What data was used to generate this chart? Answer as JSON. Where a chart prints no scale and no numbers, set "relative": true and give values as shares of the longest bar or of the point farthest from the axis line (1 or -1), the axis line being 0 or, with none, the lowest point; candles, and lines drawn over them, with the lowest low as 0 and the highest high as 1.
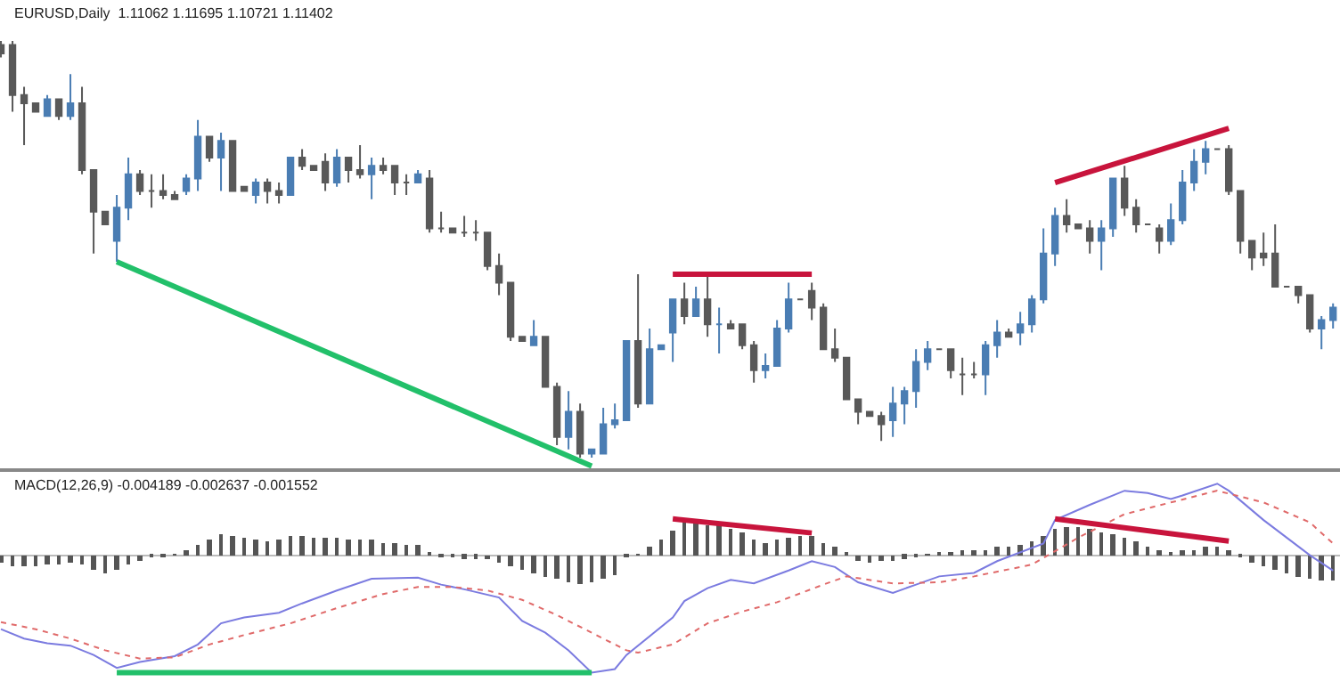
{
  "chart_data": [
    {
      "type": "candlestick",
      "relative": true,
      "annotations": [
        "EURUSD,Daily  1.11062 1.11695 1.10721 1.11402"
      ],
      "categories": [
        null,
        null,
        null,
        null,
        null,
        null,
        null,
        null,
        null,
        null,
        null,
        null,
        null,
        null,
        null,
        null,
        null,
        null,
        null,
        null,
        null,
        null,
        null,
        null,
        null,
        null,
        null,
        null,
        null,
        null,
        null,
        null,
        null,
        null,
        null,
        null,
        null,
        null,
        null,
        null,
        null,
        null,
        null,
        null,
        null,
        null,
        null,
        null,
        null,
        null,
        null,
        null,
        null,
        null,
        null,
        null,
        null,
        null,
        null,
        null,
        null,
        null,
        null,
        null,
        null,
        null,
        null,
        null,
        null,
        null,
        null,
        null,
        null,
        null,
        null,
        null,
        null,
        null,
        null,
        null,
        null,
        null,
        null,
        null,
        null,
        null,
        null,
        null,
        null,
        null,
        null,
        null,
        null,
        null,
        null,
        null,
        null,
        null,
        null,
        null,
        null,
        null,
        null,
        null,
        null,
        null,
        null,
        null,
        null,
        null,
        null,
        null,
        null,
        null,
        null,
        null
      ],
      "ohlc": [
        [
          0.99,
          1.0,
          0.96,
          0.97
        ],
        [
          0.99,
          1.0,
          0.83,
          0.87
        ],
        [
          0.87,
          0.89,
          0.75,
          0.85
        ],
        [
          0.85,
          0.85,
          0.83,
          0.83
        ],
        [
          0.82,
          0.87,
          0.82,
          0.86
        ],
        [
          0.86,
          0.86,
          0.81,
          0.82
        ],
        [
          0.82,
          0.92,
          0.81,
          0.85
        ],
        [
          0.85,
          0.89,
          0.68,
          0.69
        ],
        [
          0.69,
          0.69,
          0.49,
          0.59
        ],
        [
          0.59,
          0.59,
          0.56,
          0.56
        ],
        [
          0.52,
          0.63,
          0.47,
          0.6
        ],
        [
          0.6,
          0.72,
          0.57,
          0.68
        ],
        [
          0.68,
          0.69,
          0.63,
          0.64
        ],
        [
          0.64,
          0.68,
          0.6,
          0.64
        ],
        [
          0.64,
          0.68,
          0.62,
          0.63
        ],
        [
          0.63,
          0.64,
          0.62,
          0.62
        ],
        [
          0.64,
          0.68,
          0.63,
          0.67
        ],
        [
          0.67,
          0.81,
          0.64,
          0.77
        ],
        [
          0.77,
          0.77,
          0.71,
          0.72
        ],
        [
          0.72,
          0.78,
          0.64,
          0.76
        ],
        [
          0.76,
          0.76,
          0.64,
          0.64
        ],
        [
          0.65,
          0.65,
          0.64,
          0.64
        ],
        [
          0.63,
          0.67,
          0.61,
          0.66
        ],
        [
          0.66,
          0.67,
          0.61,
          0.64
        ],
        [
          0.64,
          0.66,
          0.61,
          0.63
        ],
        [
          0.63,
          0.72,
          0.63,
          0.72
        ],
        [
          0.72,
          0.74,
          0.69,
          0.7
        ],
        [
          0.7,
          0.7,
          0.69,
          0.69
        ],
        [
          0.71,
          0.73,
          0.64,
          0.66
        ],
        [
          0.66,
          0.74,
          0.65,
          0.72
        ],
        [
          0.72,
          0.72,
          0.66,
          0.69
        ],
        [
          0.69,
          0.75,
          0.67,
          0.68
        ],
        [
          0.68,
          0.72,
          0.62,
          0.7
        ],
        [
          0.7,
          0.72,
          0.68,
          0.69
        ],
        [
          0.7,
          0.7,
          0.63,
          0.66
        ],
        [
          0.66,
          0.68,
          0.63,
          0.66
        ],
        [
          0.66,
          0.69,
          0.66,
          0.68
        ],
        [
          0.67,
          0.69,
          0.54,
          0.55
        ],
        [
          0.55,
          0.59,
          0.54,
          0.55
        ],
        [
          0.55,
          0.55,
          0.54,
          0.54
        ],
        [
          0.54,
          0.58,
          0.53,
          0.54
        ],
        [
          0.54,
          0.57,
          0.52,
          0.54
        ],
        [
          0.54,
          0.54,
          0.45,
          0.46
        ],
        [
          0.46,
          0.49,
          0.39,
          0.42
        ],
        [
          0.42,
          0.42,
          0.28,
          0.29
        ],
        [
          0.29,
          0.29,
          0.28,
          0.28
        ],
        [
          0.27,
          0.33,
          0.27,
          0.29
        ],
        [
          0.29,
          0.29,
          0.17,
          0.17
        ],
        [
          0.17,
          0.18,
          0.03,
          0.05
        ],
        [
          0.05,
          0.16,
          0.02,
          0.11
        ],
        [
          0.11,
          0.13,
          0.0,
          0.01
        ],
        [
          0.01,
          0.02,
          0.0,
          0.02
        ],
        [
          0.01,
          0.12,
          0.01,
          0.08
        ],
        [
          0.08,
          0.13,
          0.07,
          0.09
        ],
        [
          0.09,
          0.28,
          0.09,
          0.28
        ],
        [
          0.28,
          0.44,
          0.12,
          0.13
        ],
        [
          0.13,
          0.31,
          0.13,
          0.26
        ],
        [
          0.26,
          0.27,
          0.26,
          0.27
        ],
        [
          0.3,
          0.38,
          0.23,
          0.38
        ],
        [
          0.38,
          0.42,
          0.32,
          0.34
        ],
        [
          0.34,
          0.41,
          0.34,
          0.38
        ],
        [
          0.38,
          0.44,
          0.29,
          0.32
        ],
        [
          0.32,
          0.36,
          0.25,
          0.32
        ],
        [
          0.32,
          0.33,
          0.31,
          0.31
        ],
        [
          0.32,
          0.32,
          0.26,
          0.27
        ],
        [
          0.27,
          0.28,
          0.18,
          0.21
        ],
        [
          0.21,
          0.25,
          0.19,
          0.22
        ],
        [
          0.22,
          0.33,
          0.22,
          0.31
        ],
        [
          0.31,
          0.42,
          0.3,
          0.38
        ],
        [
          0.38,
          0.38,
          0.38,
          0.38
        ],
        [
          0.4,
          0.42,
          0.33,
          0.36
        ],
        [
          0.36,
          0.37,
          0.26,
          0.26
        ],
        [
          0.26,
          0.31,
          0.23,
          0.24
        ],
        [
          0.24,
          0.24,
          0.14,
          0.14
        ],
        [
          0.14,
          0.14,
          0.08,
          0.11
        ],
        [
          0.11,
          0.11,
          0.1,
          0.1
        ],
        [
          0.1,
          0.11,
          0.04,
          0.08
        ],
        [
          0.09,
          0.17,
          0.05,
          0.13
        ],
        [
          0.13,
          0.17,
          0.08,
          0.16
        ],
        [
          0.16,
          0.26,
          0.12,
          0.23
        ],
        [
          0.23,
          0.28,
          0.21,
          0.26
        ],
        [
          0.26,
          0.26,
          0.26,
          0.26
        ],
        [
          0.26,
          0.26,
          0.19,
          0.21
        ],
        [
          0.2,
          0.24,
          0.15,
          0.2
        ],
        [
          0.2,
          0.23,
          0.19,
          0.2
        ],
        [
          0.2,
          0.28,
          0.15,
          0.27
        ],
        [
          0.27,
          0.33,
          0.24,
          0.3
        ],
        [
          0.3,
          0.31,
          0.29,
          0.29
        ],
        [
          0.3,
          0.35,
          0.27,
          0.32
        ],
        [
          0.32,
          0.39,
          0.3,
          0.38
        ],
        [
          0.38,
          0.55,
          0.37,
          0.49
        ],
        [
          0.49,
          0.6,
          0.46,
          0.58
        ],
        [
          0.58,
          0.62,
          0.54,
          0.56
        ],
        [
          0.56,
          0.56,
          0.55,
          0.55
        ],
        [
          0.55,
          0.57,
          0.49,
          0.52
        ],
        [
          0.52,
          0.57,
          0.45,
          0.55
        ],
        [
          0.55,
          0.67,
          0.53,
          0.67
        ],
        [
          0.67,
          0.7,
          0.58,
          0.6
        ],
        [
          0.6,
          0.62,
          0.54,
          0.56
        ],
        [
          0.56,
          0.56,
          0.56,
          0.56
        ],
        [
          0.55,
          0.56,
          0.49,
          0.52
        ],
        [
          0.52,
          0.61,
          0.51,
          0.57
        ],
        [
          0.57,
          0.69,
          0.56,
          0.66
        ],
        [
          0.66,
          0.74,
          0.64,
          0.71
        ],
        [
          0.71,
          0.76,
          0.68,
          0.74
        ],
        [
          0.74,
          0.74,
          0.74,
          0.74
        ],
        [
          0.74,
          0.75,
          0.63,
          0.64
        ],
        [
          0.64,
          0.64,
          0.49,
          0.52
        ],
        [
          0.52,
          0.52,
          0.45,
          0.48
        ],
        [
          0.49,
          0.54,
          0.46,
          0.48
        ],
        [
          0.49,
          0.56,
          0.41,
          0.41
        ],
        [
          0.41,
          0.41,
          0.41,
          0.41
        ],
        [
          0.41,
          0.41,
          0.37,
          0.39
        ],
        [
          0.39,
          0.39,
          0.3,
          0.31
        ],
        [
          0.31,
          0.34,
          0.26,
          0.33
        ],
        [
          0.33,
          0.37,
          0.31,
          0.36
        ]
      ],
      "colors": [
        "#595959",
        "#595959",
        "#595959",
        "#595959",
        "#4a7db3",
        "#595959",
        "#4a7db3",
        "#595959",
        "#595959",
        "#595959",
        "#4a7db3",
        "#4a7db3",
        "#595959",
        "#595959",
        "#595959",
        "#595959",
        "#4a7db3",
        "#4a7db3",
        "#595959",
        "#4a7db3",
        "#595959",
        "#595959",
        "#4a7db3",
        "#595959",
        "#595959",
        "#4a7db3",
        "#595959",
        "#595959",
        "#595959",
        "#4a7db3",
        "#595959",
        "#595959",
        "#4a7db3",
        "#595959",
        "#595959",
        "#595959",
        "#4a7db3",
        "#595959",
        "#595959",
        "#595959",
        "#595959",
        "#595959",
        "#595959",
        "#595959",
        "#595959",
        "#595959",
        "#4a7db3",
        "#595959",
        "#595959",
        "#4a7db3",
        "#595959",
        "#4a7db3",
        "#4a7db3",
        "#4a7db3",
        "#4a7db3",
        "#595959",
        "#4a7db3",
        "#4a7db3",
        "#4a7db3",
        "#595959",
        "#4a7db3",
        "#595959",
        "#4a7db3",
        "#595959",
        "#595959",
        "#595959",
        "#4a7db3",
        "#4a7db3",
        "#4a7db3",
        "#595959",
        "#595959",
        "#595959",
        "#595959",
        "#595959",
        "#595959",
        "#595959",
        "#595959",
        "#4a7db3",
        "#4a7db3",
        "#4a7db3",
        "#4a7db3",
        "#595959",
        "#595959",
        "#595959",
        "#595959",
        "#4a7db3",
        "#4a7db3",
        "#595959",
        "#4a7db3",
        "#4a7db3",
        "#4a7db3",
        "#4a7db3",
        "#595959",
        "#595959",
        "#595959",
        "#4a7db3",
        "#4a7db3",
        "#595959",
        "#595959",
        "#595959",
        "#595959",
        "#4a7db3",
        "#4a7db3",
        "#4a7db3",
        "#4a7db3",
        "#595959",
        "#595959",
        "#595959",
        "#595959",
        "#595959",
        "#595959",
        "#595959",
        "#595959",
        "#595959",
        "#4a7db3",
        "#4a7db3"
      ],
      "series": [
        {
          "type": "line",
          "color": "#22c06a",
          "values": [
            null,
            null,
            null,
            null,
            null,
            null,
            null,
            null,
            null,
            null,
            0.47,
            null,
            null,
            null,
            null,
            null,
            null,
            null,
            null,
            null,
            null,
            null,
            null,
            null,
            null,
            null,
            null,
            null,
            null,
            null,
            null,
            null,
            null,
            null,
            null,
            null,
            null,
            null,
            null,
            null,
            null,
            null,
            null,
            null,
            null,
            null,
            null,
            null,
            null,
            null,
            null,
            -0.02,
            null,
            null,
            null,
            null,
            null,
            null,
            null,
            null,
            null,
            null,
            null,
            null,
            null,
            null,
            null,
            null,
            null,
            null,
            null,
            null,
            null,
            null,
            null,
            null,
            null,
            null,
            null,
            null,
            null,
            null,
            null,
            null,
            null,
            null,
            null,
            null,
            null,
            null,
            null,
            null,
            null,
            null,
            null,
            null,
            null,
            null,
            null,
            null,
            null,
            null,
            null,
            null,
            null,
            null,
            null,
            null,
            null,
            null,
            null,
            null,
            null,
            null,
            null,
            null
          ]
        },
        {
          "type": "line",
          "color": "#c8143c",
          "values": [
            null,
            null,
            null,
            null,
            null,
            null,
            null,
            null,
            null,
            null,
            null,
            null,
            null,
            null,
            null,
            null,
            null,
            null,
            null,
            null,
            null,
            null,
            null,
            null,
            null,
            null,
            null,
            null,
            null,
            null,
            null,
            null,
            null,
            null,
            null,
            null,
            null,
            null,
            null,
            null,
            null,
            null,
            null,
            null,
            null,
            null,
            null,
            null,
            null,
            null,
            null,
            null,
            null,
            null,
            null,
            null,
            null,
            null,
            0.44,
            null,
            null,
            null,
            null,
            null,
            null,
            null,
            null,
            null,
            null,
            null,
            0.44,
            null,
            null,
            null,
            null,
            null,
            null,
            null,
            null,
            null,
            null,
            null,
            null,
            null,
            null,
            null,
            null,
            null,
            null,
            null,
            null,
            null,
            null,
            null,
            null,
            null,
            null,
            null,
            null,
            null,
            null,
            null,
            null,
            null,
            null,
            null,
            null,
            null,
            null,
            null,
            null,
            null,
            null,
            null,
            null,
            null
          ]
        },
        {
          "type": "line",
          "color": "#c8143c",
          "values": [
            null,
            null,
            null,
            null,
            null,
            null,
            null,
            null,
            null,
            null,
            null,
            null,
            null,
            null,
            null,
            null,
            null,
            null,
            null,
            null,
            null,
            null,
            null,
            null,
            null,
            null,
            null,
            null,
            null,
            null,
            null,
            null,
            null,
            null,
            null,
            null,
            null,
            null,
            null,
            null,
            null,
            null,
            null,
            null,
            null,
            null,
            null,
            null,
            null,
            null,
            null,
            null,
            null,
            null,
            null,
            null,
            null,
            null,
            null,
            null,
            null,
            null,
            null,
            null,
            null,
            null,
            null,
            null,
            null,
            null,
            null,
            null,
            null,
            null,
            null,
            null,
            null,
            null,
            null,
            null,
            null,
            null,
            null,
            null,
            null,
            null,
            null,
            null,
            null,
            null,
            null,
            0.66,
            null,
            null,
            null,
            null,
            null,
            null,
            null,
            null,
            null,
            null,
            null,
            null,
            null,
            null,
            0.79,
            null,
            null,
            null,
            null,
            null,
            null,
            null,
            null,
            null
          ]
        }
      ]
    },
    {
      "type": "bar",
      "relative": true,
      "annotations": [
        "MACD(12,26,9) -0.004189 -0.002637 -0.001552"
      ],
      "categories": [
        null,
        null,
        null,
        null,
        null,
        null,
        null,
        null,
        null,
        null,
        null,
        null,
        null,
        null,
        null,
        null,
        null,
        null,
        null,
        null,
        null,
        null,
        null,
        null,
        null,
        null,
        null,
        null,
        null,
        null,
        null,
        null,
        null,
        null,
        null,
        null,
        null,
        null,
        null,
        null,
        null,
        null,
        null,
        null,
        null,
        null,
        null,
        null,
        null,
        null,
        null,
        null,
        null,
        null,
        null,
        null,
        null,
        null,
        null,
        null,
        null,
        null,
        null,
        null,
        null,
        null,
        null,
        null,
        null,
        null,
        null,
        null,
        null,
        null,
        null,
        null,
        null,
        null,
        null,
        null,
        null,
        null,
        null,
        null,
        null,
        null,
        null,
        null,
        null,
        null,
        null,
        null,
        null,
        null,
        null,
        null,
        null,
        null,
        null,
        null,
        null,
        null,
        null,
        null,
        null,
        null,
        null,
        null,
        null,
        null,
        null,
        null,
        null,
        null,
        null,
        null
      ],
      "series": [
        {
          "type": "bar",
          "color": "#555555",
          "values": [
            -0.07,
            -0.09,
            -0.1,
            -0.09,
            -0.08,
            -0.08,
            -0.06,
            -0.08,
            -0.13,
            -0.15,
            -0.13,
            -0.08,
            -0.05,
            -0.02,
            -0.01,
            0.01,
            0.04,
            0.09,
            0.14,
            0.18,
            0.16,
            0.15,
            0.14,
            0.12,
            0.14,
            0.16,
            0.16,
            0.15,
            0.15,
            0.15,
            0.14,
            0.13,
            0.13,
            0.11,
            0.1,
            0.09,
            0.09,
            0.02,
            -0.01,
            -0.02,
            -0.03,
            -0.03,
            -0.04,
            -0.06,
            -0.1,
            -0.13,
            -0.16,
            -0.18,
            -0.2,
            -0.23,
            -0.24,
            -0.23,
            -0.2,
            -0.17,
            -0.02,
            0.01,
            0.08,
            0.13,
            0.21,
            0.29,
            0.28,
            0.26,
            0.25,
            0.23,
            0.19,
            0.13,
            0.11,
            0.13,
            0.15,
            0.16,
            0.16,
            0.11,
            0.07,
            0.02,
            -0.05,
            -0.06,
            -0.05,
            -0.05,
            -0.03,
            -0.01,
            0.01,
            0.03,
            0.03,
            0.04,
            0.04,
            0.05,
            0.07,
            0.08,
            0.09,
            0.12,
            0.16,
            0.22,
            0.24,
            0.24,
            0.22,
            0.2,
            0.18,
            0.15,
            0.12,
            0.07,
            0.05,
            0.02,
            0.04,
            0.05,
            0.08,
            0.08,
            0.04,
            -0.02,
            -0.07,
            -0.1,
            -0.13,
            -0.16,
            -0.18,
            -0.2,
            -0.22,
            -0.22
          ]
        },
        {
          "type": "line",
          "color": "#7b7be0",
          "values": [
            -0.63,
            null,
            -0.71,
            null,
            -0.75,
            null,
            -0.77,
            null,
            -0.85,
            null,
            -0.96,
            null,
            -0.91,
            null,
            null,
            -0.86,
            null,
            -0.76,
            null,
            -0.58,
            null,
            -0.53,
            null,
            null,
            -0.49,
            null,
            -0.41,
            null,
            null,
            -0.3,
            null,
            null,
            -0.2,
            null,
            null,
            null,
            -0.19,
            null,
            -0.25,
            null,
            -0.29,
            null,
            null,
            -0.36,
            null,
            -0.56,
            null,
            -0.66,
            null,
            -0.81,
            null,
            -1.0,
            null,
            -0.97,
            -0.85,
            null,
            null,
            null,
            -0.53,
            -0.39,
            null,
            -0.28,
            null,
            -0.21,
            null,
            -0.24,
            null,
            null,
            -0.13,
            null,
            -0.05,
            null,
            -0.1,
            null,
            -0.23,
            null,
            null,
            -0.32,
            null,
            -0.25,
            null,
            -0.18,
            null,
            null,
            -0.15,
            null,
            -0.05,
            null,
            null,
            null,
            0.1,
            0.3,
            null,
            null,
            0.43,
            null,
            null,
            0.55,
            null,
            0.53,
            null,
            0.48,
            0.51,
            null,
            null,
            0.61,
            0.55,
            null,
            null,
            0.3,
            null,
            null,
            null,
            0.0,
            null,
            -0.13
          ]
        },
        {
          "type": "line",
          "color": "#e06a6a",
          "line_style": "dotted",
          "values": [
            -0.57,
            null,
            null,
            -0.63,
            null,
            null,
            -0.71,
            null,
            null,
            -0.81,
            null,
            null,
            -0.88,
            null,
            null,
            -0.87,
            null,
            null,
            -0.76,
            null,
            null,
            -0.68,
            null,
            null,
            null,
            -0.58,
            null,
            null,
            null,
            -0.45,
            null,
            null,
            null,
            -0.33,
            null,
            null,
            -0.27,
            null,
            null,
            -0.27,
            null,
            null,
            -0.3,
            null,
            null,
            -0.38,
            null,
            null,
            -0.51,
            null,
            null,
            -0.66,
            null,
            null,
            -0.81,
            -0.83,
            null,
            null,
            -0.76,
            null,
            null,
            -0.58,
            null,
            null,
            -0.48,
            null,
            null,
            -0.4,
            null,
            null,
            null,
            -0.25,
            null,
            -0.18,
            null,
            null,
            null,
            -0.24,
            null,
            null,
            null,
            -0.23,
            null,
            null,
            -0.18,
            null,
            null,
            null,
            null,
            -0.08,
            null,
            null,
            null,
            0.15,
            null,
            null,
            null,
            0.35,
            null,
            null,
            null,
            0.45,
            null,
            null,
            null,
            0.55,
            null,
            null,
            null,
            0.45,
            null,
            null,
            null,
            0.28,
            null,
            0.1
          ]
        },
        {
          "type": "line",
          "color": "#c8143c",
          "values": [
            null,
            null,
            null,
            null,
            null,
            null,
            null,
            null,
            null,
            null,
            null,
            null,
            null,
            null,
            null,
            null,
            null,
            null,
            null,
            null,
            null,
            null,
            null,
            null,
            null,
            null,
            null,
            null,
            null,
            null,
            null,
            null,
            null,
            null,
            null,
            null,
            null,
            null,
            null,
            null,
            null,
            null,
            null,
            null,
            null,
            null,
            null,
            null,
            null,
            null,
            null,
            null,
            null,
            null,
            null,
            null,
            null,
            null,
            0.31,
            null,
            null,
            null,
            null,
            null,
            null,
            null,
            null,
            null,
            null,
            null,
            0.19,
            null,
            null,
            null,
            null,
            null,
            null,
            null,
            null,
            null,
            null,
            null,
            null,
            null,
            null,
            null,
            null,
            null,
            null,
            null,
            null,
            null,
            null,
            null,
            null,
            null,
            null,
            null,
            null,
            null,
            null,
            null,
            null,
            null,
            null,
            null,
            null,
            null,
            null,
            null,
            null,
            null,
            null,
            null,
            null,
            null
          ]
        },
        {
          "type": "line",
          "color": "#c8143c",
          "values": [
            null,
            null,
            null,
            null,
            null,
            null,
            null,
            null,
            null,
            null,
            null,
            null,
            null,
            null,
            null,
            null,
            null,
            null,
            null,
            null,
            null,
            null,
            null,
            null,
            null,
            null,
            null,
            null,
            null,
            null,
            null,
            null,
            null,
            null,
            null,
            null,
            null,
            null,
            null,
            null,
            null,
            null,
            null,
            null,
            null,
            null,
            null,
            null,
            null,
            null,
            null,
            null,
            null,
            null,
            null,
            null,
            null,
            null,
            null,
            null,
            null,
            null,
            null,
            null,
            null,
            null,
            null,
            null,
            null,
            null,
            null,
            null,
            null,
            null,
            null,
            null,
            null,
            null,
            null,
            null,
            null,
            null,
            null,
            null,
            null,
            null,
            null,
            null,
            null,
            null,
            null,
            0.31,
            null,
            null,
            null,
            null,
            null,
            null,
            null,
            null,
            null,
            null,
            null,
            null,
            null,
            null,
            0.12,
            null,
            null,
            null,
            null,
            null,
            null,
            null,
            null,
            null
          ]
        },
        {
          "type": "line",
          "color": "#22c06a",
          "values": [
            null,
            null,
            null,
            null,
            null,
            null,
            null,
            null,
            null,
            null,
            -1.0,
            null,
            null,
            null,
            null,
            null,
            null,
            null,
            null,
            null,
            null,
            null,
            null,
            null,
            null,
            null,
            null,
            null,
            null,
            null,
            null,
            null,
            null,
            null,
            null,
            null,
            null,
            null,
            null,
            null,
            null,
            null,
            null,
            null,
            null,
            null,
            null,
            null,
            null,
            null,
            null,
            -1.0,
            null,
            null,
            null,
            null,
            null,
            null,
            null,
            null,
            null,
            null,
            null,
            null,
            null,
            null,
            null,
            null,
            null,
            null,
            null,
            null,
            null,
            null,
            null,
            null,
            null,
            null,
            null,
            null,
            null,
            null,
            null,
            null,
            null,
            null,
            null,
            null,
            null,
            null,
            null,
            null,
            null,
            null,
            null,
            null,
            null,
            null,
            null,
            null,
            null,
            null,
            null,
            null,
            null,
            null,
            null,
            null,
            null,
            null,
            null,
            null,
            null,
            null,
            null,
            null
          ]
        }
      ]
    }
  ]
}
